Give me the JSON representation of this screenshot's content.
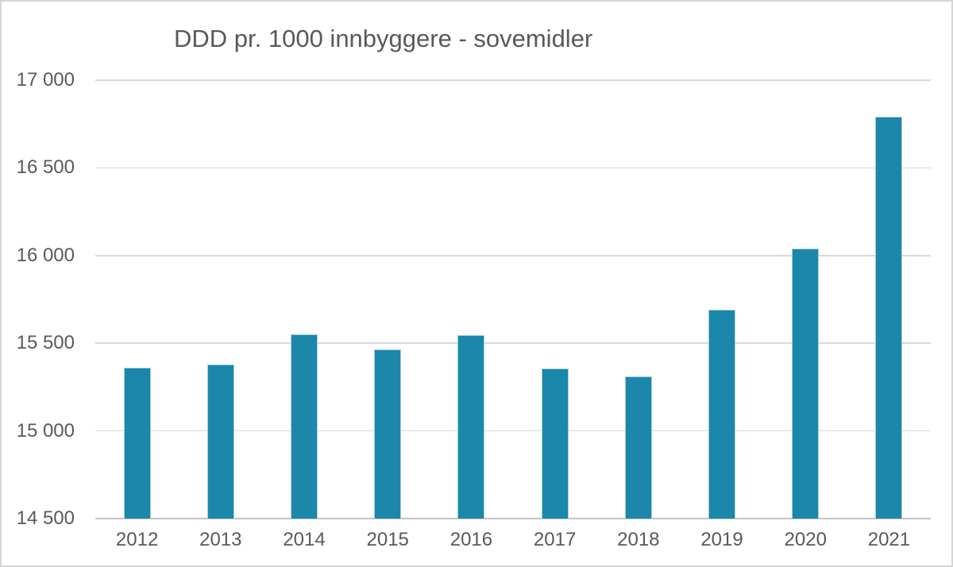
{
  "chart_data": {
    "type": "bar",
    "title": "DDD pr. 1000 innbyggere - sovemidler",
    "categories": [
      "2012",
      "2013",
      "2014",
      "2015",
      "2016",
      "2017",
      "2018",
      "2019",
      "2020",
      "2021"
    ],
    "values": [
      15360,
      15380,
      15550,
      15465,
      15545,
      15355,
      15310,
      15690,
      16040,
      16790
    ],
    "xlabel": "",
    "ylabel": "",
    "ylim": [
      14500,
      17000
    ],
    "yticks": [
      {
        "value": 17000,
        "label": "17 000"
      },
      {
        "value": 16500,
        "label": "16 500"
      },
      {
        "value": 16000,
        "label": "16 000"
      },
      {
        "value": 15500,
        "label": "15 500"
      },
      {
        "value": 15000,
        "label": "15 000"
      },
      {
        "value": 14500,
        "label": "14 500"
      }
    ],
    "grid": true,
    "legend": false,
    "bar_color": "#1b87ab",
    "gridline_color": "#d9d9d9",
    "text_color": "#595959"
  }
}
